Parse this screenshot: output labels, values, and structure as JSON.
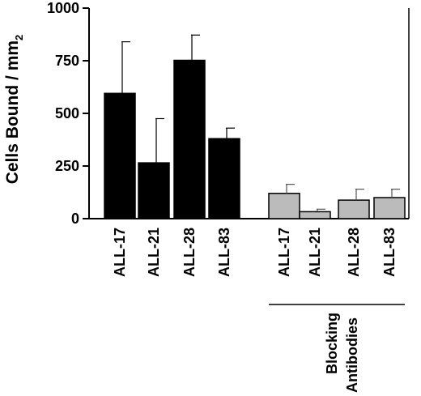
{
  "chart_data": {
    "type": "bar",
    "ylabel": "Cells Bound / mm",
    "ylabel_superscript": "2",
    "ylim": [
      0,
      1000
    ],
    "yticks": [
      0,
      250,
      500,
      750,
      1000
    ],
    "grid": false,
    "categories": [
      "ALL-17",
      "ALL-21",
      "ALL-28",
      "ALL-83",
      "ALL-17",
      "ALL-21",
      "ALL-28",
      "ALL-83"
    ],
    "series": [
      {
        "values": [
          595,
          265,
          752,
          380,
          null,
          null,
          null,
          null
        ],
        "errors": [
          245,
          210,
          120,
          50,
          null,
          null,
          null,
          null
        ],
        "color": "#000000"
      },
      {
        "values": [
          null,
          null,
          null,
          null,
          120,
          33,
          88,
          100
        ],
        "errors": [
          null,
          null,
          null,
          null,
          43,
          12,
          52,
          40
        ],
        "color": "#bbbbbb"
      }
    ],
    "group_annotation": {
      "label_line1": "Blocking",
      "label_line2": "Antibodies"
    }
  }
}
